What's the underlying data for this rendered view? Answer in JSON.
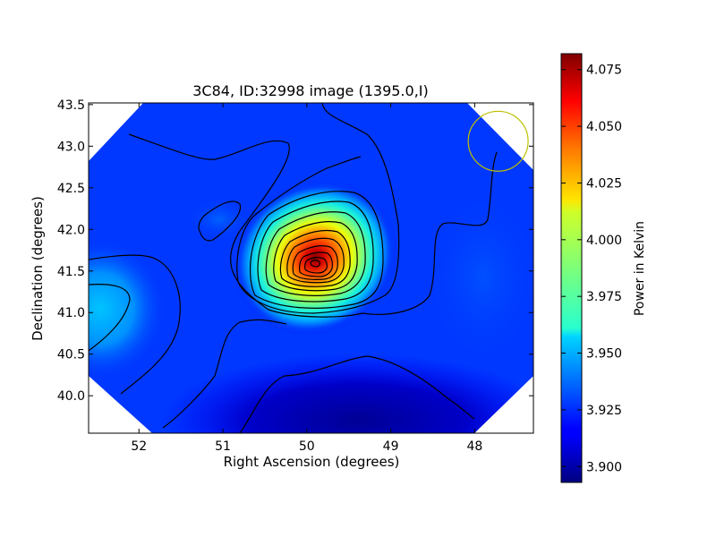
{
  "chart_data": {
    "type": "heatmap",
    "title": "3C84, ID:32998 image (1395.0,I)",
    "xlabel": "Right Ascension (degrees)",
    "ylabel": "Declination (degrees)",
    "xlim": [
      52.6,
      47.3
    ],
    "ylim": [
      39.55,
      43.52
    ],
    "xticks": [
      "52",
      "51",
      "50",
      "49",
      "48"
    ],
    "xtick_values": [
      52,
      51,
      50,
      49,
      48
    ],
    "yticks": [
      "40.0",
      "40.5",
      "41.0",
      "41.5",
      "42.0",
      "42.5",
      "43.0",
      "43.5"
    ],
    "ytick_values": [
      40.0,
      40.5,
      41.0,
      41.5,
      42.0,
      42.5,
      43.0,
      43.5
    ],
    "colorbar": {
      "label": "Power in Kelvin",
      "range": [
        3.893,
        4.082
      ],
      "ticks": [
        "3.900",
        "3.925",
        "3.950",
        "3.975",
        "4.000",
        "4.025",
        "4.050",
        "4.075"
      ],
      "tick_values": [
        3.9,
        3.925,
        3.95,
        3.975,
        4.0,
        4.025,
        4.05,
        4.075
      ],
      "colormap": "jet"
    },
    "peak": {
      "ra": 49.92,
      "dec": 41.58,
      "value": 4.078
    },
    "beam_circle": {
      "ra": 47.72,
      "dec": 43.06,
      "radius_deg": 0.36,
      "color": "#bfbf00"
    },
    "contour_color": "#000000"
  }
}
